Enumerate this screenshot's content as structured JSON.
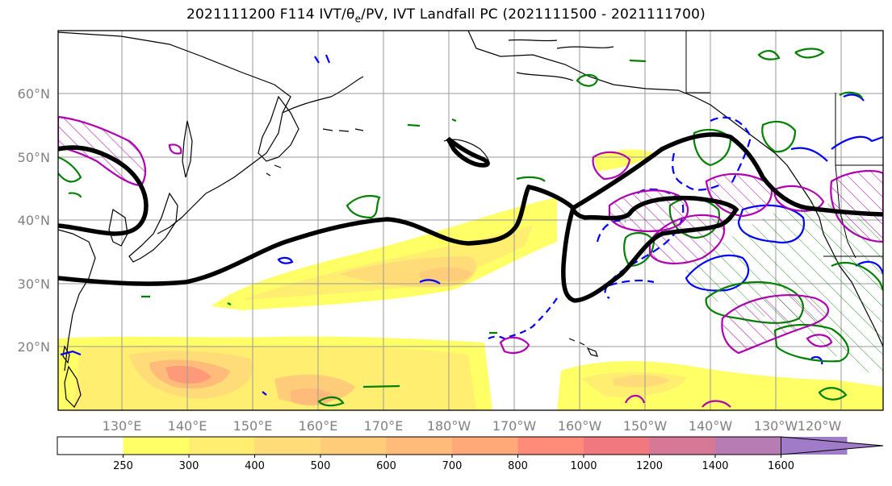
{
  "title": "2021111200 F114 IVT/θe/PV, IVT Landfall PC (2021111500 - 2021111700)",
  "title_parts": {
    "prefix": "2021111200 F114 IVT/",
    "theta": "θ",
    "theta_sub": "e",
    "suffix": "/PV, IVT Landfall PC (2021111500 - 2021111700)"
  },
  "latitude_labels": [
    "60°N",
    "50°N",
    "40°N",
    "30°N",
    "20°N"
  ],
  "longitude_labels": [
    "130°E",
    "140°E",
    "150°E",
    "160°E",
    "170°E",
    "180°W",
    "170°W",
    "160°W",
    "150°W",
    "140°W",
    "130°W",
    "120°W"
  ],
  "colorbar": {
    "ticks": [
      "250",
      "300",
      "400",
      "500",
      "600",
      "700",
      "800",
      "1000",
      "1200",
      "1400",
      "1600"
    ],
    "colors": [
      "#ffff66",
      "#ffee70",
      "#ffdc78",
      "#ffcc7a",
      "#ffbb7a",
      "#ffa878",
      "#ff8c78",
      "#f0787e",
      "#d67896",
      "#b87cb4",
      "#a07cc8"
    ],
    "extend": "max"
  },
  "colors": {
    "ivt_low": "#ffff66",
    "ivt_mid": "#ffcc7a",
    "ivt_high": "#ff9a78",
    "theta_e_contour": "#008000",
    "pv_contour": "#0000ff",
    "landfall_pc_contour": "#b000b0",
    "thick_contour": "#000000",
    "grid": "#9a9a9a"
  }
}
